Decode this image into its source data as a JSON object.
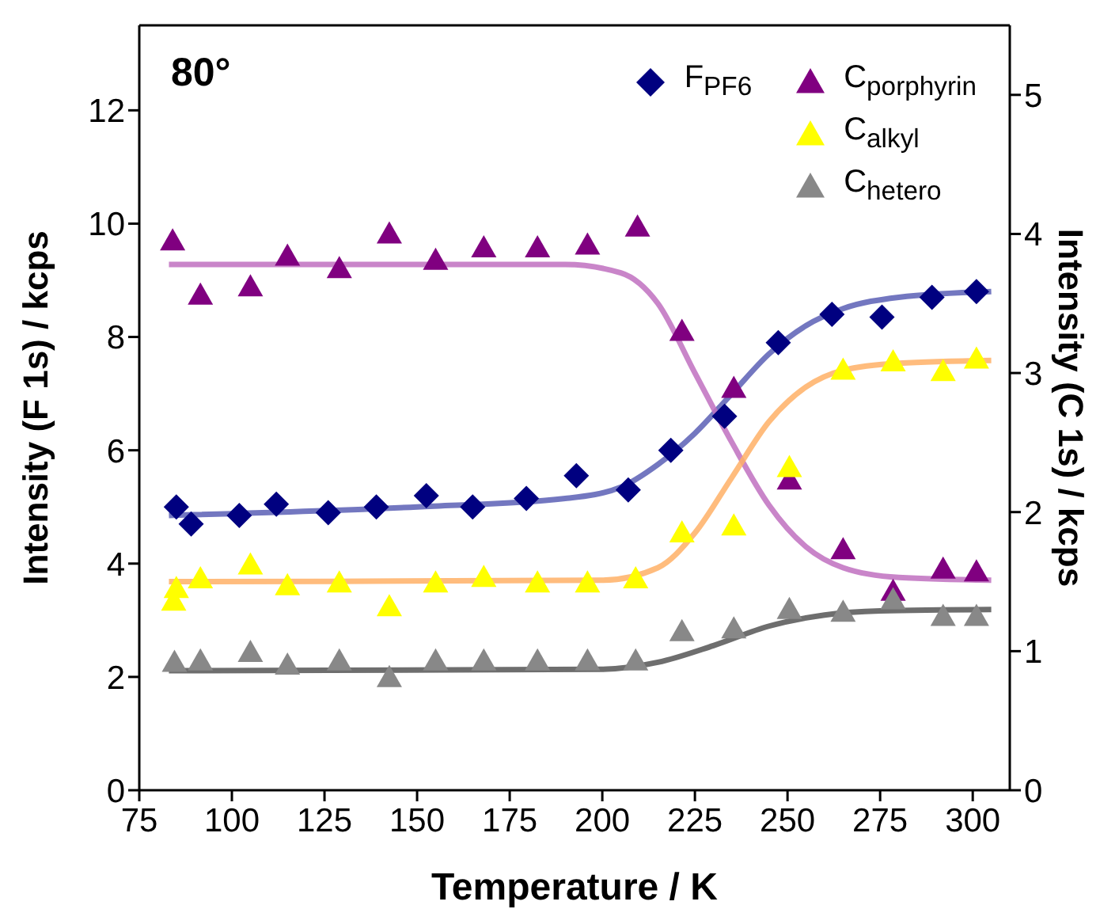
{
  "chart_data": {
    "type": "scatter",
    "xlabel": "Temperature / K",
    "ylabel": "Intensity (F 1s) / kcps",
    "y2label": "Intensity (C 1s) / kcps",
    "annotations": [
      "80°"
    ],
    "xlim": [
      75,
      310
    ],
    "xticks": [
      75,
      100,
      125,
      150,
      175,
      200,
      225,
      250,
      275,
      300
    ],
    "ylim": [
      0,
      13.5
    ],
    "yticks": [
      0,
      2,
      4,
      6,
      8,
      10,
      12
    ],
    "y2lim": [
      0,
      5.5
    ],
    "y2ticks": [
      0,
      1,
      2,
      3,
      4,
      5
    ],
    "grid": false,
    "legend": "top right",
    "series": [
      {
        "name": "F$_{PF6}$",
        "marker": "diamond",
        "color": "#000080",
        "x": [
          85,
          89,
          102,
          112,
          126,
          139,
          152.5,
          165,
          179.5,
          193,
          207,
          218.5,
          233,
          247.5,
          262,
          275.5,
          289,
          301
        ],
        "values": [
          5.0,
          4.7,
          4.85,
          5.05,
          4.9,
          5.0,
          5.2,
          5.0,
          5.15,
          5.55,
          5.3,
          6.0,
          6.6,
          7.9,
          8.4,
          8.35,
          8.7,
          8.8
        ]
      },
      {
        "name": "C$_{porphyrin}$",
        "axis": "y2",
        "marker": "triangle",
        "color": "#800080",
        "x": [
          84,
          91.5,
          105,
          115,
          129,
          142.5,
          155,
          168,
          182.5,
          196,
          209.5,
          221.5,
          235.5,
          250.5,
          265,
          278.5,
          292,
          301
        ],
        "values": [
          3.95,
          3.56,
          3.62,
          3.84,
          3.75,
          4.0,
          3.81,
          3.9,
          3.9,
          3.92,
          4.05,
          3.3,
          2.89,
          2.23,
          1.73,
          1.43,
          1.59,
          1.57
        ]
      },
      {
        "name": "C$_{alkyl}$",
        "axis": "y2",
        "marker": "triangle",
        "color": "#ffff00",
        "x": [
          84.3,
          85,
          91.5,
          105,
          115,
          129,
          142.5,
          155,
          168,
          182.5,
          196,
          209,
          221.5,
          235.5,
          250.5,
          265,
          278.5,
          292,
          301
        ],
        "values": [
          1.36,
          1.45,
          1.52,
          1.62,
          1.47,
          1.49,
          1.32,
          1.49,
          1.53,
          1.49,
          1.49,
          1.52,
          1.85,
          1.9,
          2.32,
          3.02,
          3.08,
          3.01,
          3.1
        ]
      },
      {
        "name": "C$_{hetero}$",
        "axis": "y2",
        "marker": "triangle",
        "color": "#888888",
        "x": [
          84.5,
          91.5,
          105,
          115,
          129,
          142.5,
          155,
          168,
          182.5,
          196,
          209,
          221.5,
          235.5,
          250.5,
          265,
          278.5,
          292,
          301
        ],
        "values": [
          0.92,
          0.93,
          0.99,
          0.9,
          0.93,
          0.81,
          0.93,
          0.93,
          0.93,
          0.93,
          0.93,
          1.14,
          1.16,
          1.3,
          1.28,
          1.37,
          1.25,
          1.25
        ]
      },
      {
        "type": "line",
        "color": "#5b5fb5",
        "x": [
          83,
          150,
          190,
          205,
          215,
          225,
          235,
          245,
          255,
          265,
          280,
          305
        ],
        "values": [
          4.85,
          5.0,
          5.15,
          5.35,
          5.75,
          6.3,
          7.0,
          7.7,
          8.2,
          8.5,
          8.7,
          8.8
        ]
      },
      {
        "type": "line",
        "axis": "y2",
        "color": "#c070c0",
        "x": [
          83,
          190,
          205,
          215,
          225,
          235,
          245,
          255,
          265,
          280,
          305
        ],
        "values": [
          3.78,
          3.78,
          3.72,
          3.5,
          3.0,
          2.5,
          2.05,
          1.75,
          1.6,
          1.53,
          1.51
        ]
      },
      {
        "type": "line",
        "axis": "y2",
        "color": "#ffb066",
        "x": [
          83,
          200,
          215,
          225,
          235,
          245,
          255,
          265,
          280,
          305
        ],
        "values": [
          1.5,
          1.51,
          1.6,
          1.85,
          2.25,
          2.65,
          2.9,
          3.02,
          3.07,
          3.09
        ]
      },
      {
        "type": "line",
        "axis": "y2",
        "color": "#555555",
        "x": [
          83,
          200,
          215,
          230,
          245,
          260,
          275,
          305
        ],
        "values": [
          0.86,
          0.87,
          0.92,
          1.04,
          1.18,
          1.26,
          1.29,
          1.3
        ]
      }
    ]
  }
}
